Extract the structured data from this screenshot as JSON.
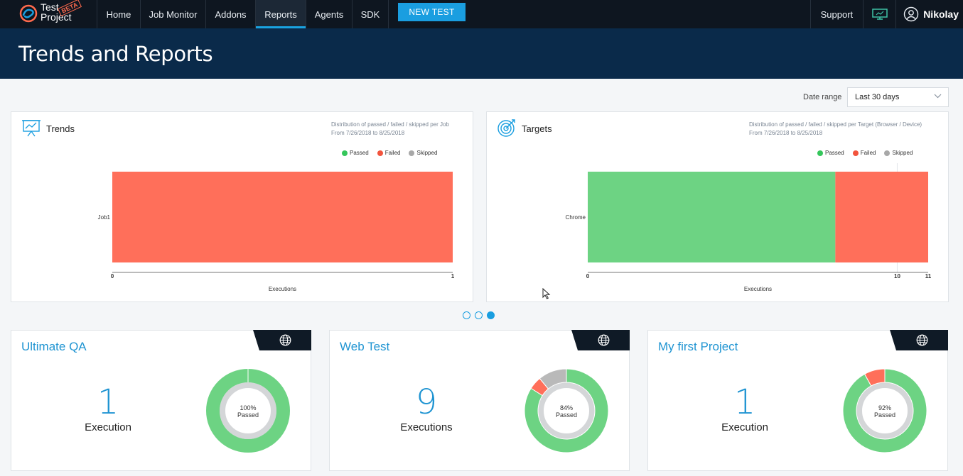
{
  "nav": {
    "logo_line1": "Test",
    "logo_line2": "Project",
    "beta": "BETA",
    "items": [
      {
        "label": "Home",
        "active": false
      },
      {
        "label": "Job Monitor",
        "active": false
      },
      {
        "label": "Addons",
        "active": false
      },
      {
        "label": "Reports",
        "active": true
      },
      {
        "label": "Agents",
        "active": false
      },
      {
        "label": "SDK",
        "active": false
      }
    ],
    "new_test": "NEW TEST",
    "support": "Support",
    "monitor_icon": "monitor-icon",
    "user_icon": "user-circle-icon",
    "username": "Nikolay"
  },
  "page": {
    "title": "Trends and Reports"
  },
  "date_range": {
    "label": "Date range",
    "value": "Last 30 days"
  },
  "trends": {
    "title": "Trends",
    "icon": "presentation-chart-icon",
    "subtitle1": "Distribution of passed / failed / skipped per Job",
    "subtitle2": "From 7/26/2018 to 8/25/2018",
    "legend": [
      "Passed",
      "Failed",
      "Skipped"
    ]
  },
  "targets": {
    "title": "Targets",
    "icon": "target-icon",
    "subtitle1": "Distribution of passed / failed / skipped per Target (Browser / Device)",
    "subtitle2": "From 7/26/2018 to 8/25/2018",
    "legend": [
      "Passed",
      "Failed",
      "Skipped"
    ]
  },
  "colors": {
    "passed": "#6dd383",
    "failed": "#ff6f5a",
    "skipped": "#b9b9b9",
    "legend_passed": "#35c65b",
    "legend_failed": "#f2543d",
    "legend_skipped": "#a8a8a8",
    "accent": "#1a9ee0"
  },
  "chart_data": [
    {
      "type": "bar",
      "orientation": "horizontal",
      "stacked": true,
      "categories": [
        "Job1"
      ],
      "series": [
        {
          "name": "Passed",
          "values": [
            0
          ]
        },
        {
          "name": "Failed",
          "values": [
            1
          ]
        },
        {
          "name": "Skipped",
          "values": [
            0
          ]
        }
      ],
      "xlabel": "Executions",
      "xticks": [
        "0",
        "1"
      ],
      "xlim": [
        0,
        1
      ],
      "legend": "top-right"
    },
    {
      "type": "bar",
      "orientation": "horizontal",
      "stacked": true,
      "categories": [
        "Chrome"
      ],
      "series": [
        {
          "name": "Passed",
          "values": [
            8
          ]
        },
        {
          "name": "Failed",
          "values": [
            3
          ]
        },
        {
          "name": "Skipped",
          "values": [
            0
          ]
        }
      ],
      "xlabel": "Executions",
      "xticks": [
        "0",
        "10",
        "11"
      ],
      "xlim": [
        0,
        11
      ],
      "legend": "top-right"
    },
    {
      "type": "pie",
      "donut": true,
      "series": [
        {
          "name": "Passed",
          "values": [
            100
          ]
        },
        {
          "name": "Failed",
          "values": [
            0
          ]
        },
        {
          "name": "Skipped",
          "values": [
            0
          ]
        }
      ],
      "center_label": "100%",
      "center_sub": "Passed"
    },
    {
      "type": "pie",
      "donut": true,
      "series": [
        {
          "name": "Passed",
          "values": [
            84
          ]
        },
        {
          "name": "Failed",
          "values": [
            5
          ]
        },
        {
          "name": "Skipped",
          "values": [
            11
          ]
        }
      ],
      "center_label": "84%",
      "center_sub": "Passed"
    },
    {
      "type": "pie",
      "donut": true,
      "series": [
        {
          "name": "Passed",
          "values": [
            92
          ]
        },
        {
          "name": "Failed",
          "values": [
            8
          ]
        },
        {
          "name": "Skipped",
          "values": [
            0
          ]
        }
      ],
      "center_label": "92%",
      "center_sub": "Passed"
    }
  ],
  "pager": {
    "count": 3,
    "active": 3
  },
  "projects": [
    {
      "name": "Ultimate QA",
      "count": "1",
      "unit": "Execution",
      "icon": "globe-icon"
    },
    {
      "name": "Web Test",
      "count": "9",
      "unit": "Executions",
      "icon": "globe-icon"
    },
    {
      "name": "My first Project",
      "count": "1",
      "unit": "Execution",
      "icon": "globe-icon"
    }
  ]
}
